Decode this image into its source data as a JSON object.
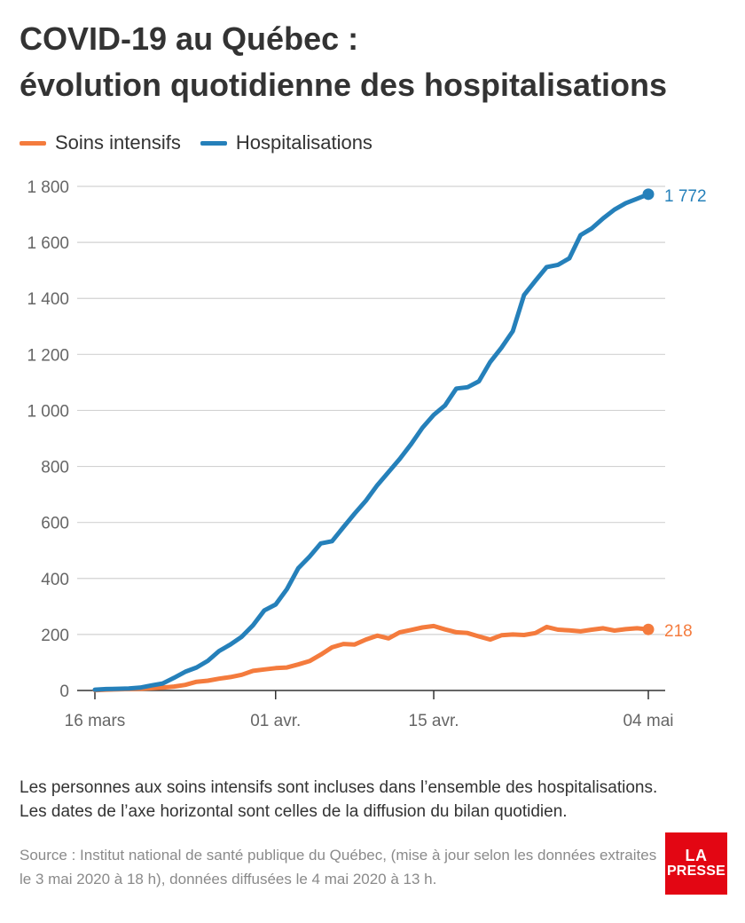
{
  "title_line1": "COVID-19 au Québec :",
  "title_line2": "évolution quotidienne des hospitalisations",
  "note_line1": "Les personnes aux soins intensifs sont incluses dans l’ensemble des hospitalisations.",
  "note_line2": "Les dates de l’axe horizontal sont celles de la diffusion du bilan quotidien.",
  "source": "Source : Institut national de santé publique du Québec, (mise à jour selon les données extraites le 3 mai 2020 à 18 h), données diffusées le 4 mai 2020 à 13 h.",
  "logo_line1": "LA",
  "logo_line2": "PRESSE",
  "chart_data": {
    "type": "line",
    "title": "COVID-19 au Québec : évolution quotidienne des hospitalisations",
    "x_start": "2020-03-16",
    "x_end": "2020-05-04",
    "xticks": [
      {
        "date": "2020-03-16",
        "label": "16 mars"
      },
      {
        "date": "2020-04-01",
        "label": "01 avr."
      },
      {
        "date": "2020-04-15",
        "label": "15 avr."
      },
      {
        "date": "2020-05-04",
        "label": "04 mai"
      }
    ],
    "ylim": [
      0,
      1800
    ],
    "yticks": [
      {
        "value": 0,
        "label": "0"
      },
      {
        "value": 200,
        "label": "200"
      },
      {
        "value": 400,
        "label": "400"
      },
      {
        "value": 600,
        "label": "600"
      },
      {
        "value": 800,
        "label": "800"
      },
      {
        "value": 1000,
        "label": "1 000"
      },
      {
        "value": 1200,
        "label": "1 200"
      },
      {
        "value": 1400,
        "label": "1 400"
      },
      {
        "value": 1600,
        "label": "1 600"
      },
      {
        "value": 1800,
        "label": "1 800"
      }
    ],
    "grid": true,
    "legend_position": "top-left",
    "series": [
      {
        "name": "Soins intensifs",
        "color": "#f47b3d",
        "end_label": "218",
        "points": [
          [
            "2020-03-16",
            1
          ],
          [
            "2020-03-17",
            3
          ],
          [
            "2020-03-18",
            4
          ],
          [
            "2020-03-19",
            5
          ],
          [
            "2020-03-20",
            6
          ],
          [
            "2020-03-21",
            8
          ],
          [
            "2020-03-22",
            10
          ],
          [
            "2020-03-23",
            14
          ],
          [
            "2020-03-24",
            20
          ],
          [
            "2020-03-25",
            31
          ],
          [
            "2020-03-26",
            35
          ],
          [
            "2020-03-27",
            42
          ],
          [
            "2020-03-28",
            48
          ],
          [
            "2020-03-29",
            56
          ],
          [
            "2020-03-30",
            70
          ],
          [
            "2020-03-31",
            75
          ],
          [
            "2020-04-01",
            80
          ],
          [
            "2020-04-02",
            82
          ],
          [
            "2020-04-03",
            93
          ],
          [
            "2020-04-04",
            105
          ],
          [
            "2020-04-05",
            128
          ],
          [
            "2020-04-06",
            154
          ],
          [
            "2020-04-07",
            166
          ],
          [
            "2020-04-08",
            164
          ],
          [
            "2020-04-09",
            182
          ],
          [
            "2020-04-10",
            196
          ],
          [
            "2020-04-11",
            186
          ],
          [
            "2020-04-12",
            208
          ],
          [
            "2020-04-13",
            216
          ],
          [
            "2020-04-14",
            225
          ],
          [
            "2020-04-15",
            230
          ],
          [
            "2020-04-16",
            218
          ],
          [
            "2020-04-17",
            208
          ],
          [
            "2020-04-18",
            205
          ],
          [
            "2020-04-19",
            193
          ],
          [
            "2020-04-20",
            182
          ],
          [
            "2020-04-21",
            197
          ],
          [
            "2020-04-22",
            200
          ],
          [
            "2020-04-23",
            198
          ],
          [
            "2020-04-24",
            205
          ],
          [
            "2020-04-25",
            227
          ],
          [
            "2020-04-26",
            217
          ],
          [
            "2020-04-27",
            215
          ],
          [
            "2020-04-28",
            211
          ],
          [
            "2020-04-29",
            217
          ],
          [
            "2020-04-30",
            222
          ],
          [
            "2020-05-01",
            214
          ],
          [
            "2020-05-02",
            219
          ],
          [
            "2020-05-03",
            222
          ],
          [
            "2020-05-04",
            218
          ]
        ]
      },
      {
        "name": "Hospitalisations",
        "color": "#2580ba",
        "end_label": "1 772",
        "points": [
          [
            "2020-03-16",
            3
          ],
          [
            "2020-03-17",
            5
          ],
          [
            "2020-03-18",
            6
          ],
          [
            "2020-03-19",
            7
          ],
          [
            "2020-03-20",
            10
          ],
          [
            "2020-03-21",
            18
          ],
          [
            "2020-03-22",
            25
          ],
          [
            "2020-03-23",
            45
          ],
          [
            "2020-03-24",
            67
          ],
          [
            "2020-03-25",
            82
          ],
          [
            "2020-03-26",
            106
          ],
          [
            "2020-03-27",
            141
          ],
          [
            "2020-03-28",
            164
          ],
          [
            "2020-03-29",
            192
          ],
          [
            "2020-03-30",
            233
          ],
          [
            "2020-03-31",
            286
          ],
          [
            "2020-04-01",
            307
          ],
          [
            "2020-04-02",
            362
          ],
          [
            "2020-04-03",
            436
          ],
          [
            "2020-04-04",
            478
          ],
          [
            "2020-04-05",
            525
          ],
          [
            "2020-04-06",
            533
          ],
          [
            "2020-04-07",
            583
          ],
          [
            "2020-04-08",
            632
          ],
          [
            "2020-04-09",
            678
          ],
          [
            "2020-04-10",
            733
          ],
          [
            "2020-04-11",
            780
          ],
          [
            "2020-04-12",
            827
          ],
          [
            "2020-04-13",
            880
          ],
          [
            "2020-04-14",
            938
          ],
          [
            "2020-04-15",
            984
          ],
          [
            "2020-04-16",
            1018
          ],
          [
            "2020-04-17",
            1078
          ],
          [
            "2020-04-18",
            1083
          ],
          [
            "2020-04-19",
            1104
          ],
          [
            "2020-04-20",
            1173
          ],
          [
            "2020-04-21",
            1224
          ],
          [
            "2020-04-22",
            1283
          ],
          [
            "2020-04-23",
            1412
          ],
          [
            "2020-04-24",
            1463
          ],
          [
            "2020-04-25",
            1512
          ],
          [
            "2020-04-26",
            1520
          ],
          [
            "2020-04-27",
            1543
          ],
          [
            "2020-04-28",
            1626
          ],
          [
            "2020-04-29",
            1650
          ],
          [
            "2020-04-30",
            1686
          ],
          [
            "2020-05-01",
            1717
          ],
          [
            "2020-05-02",
            1740
          ],
          [
            "2020-05-03",
            1756
          ],
          [
            "2020-05-04",
            1772
          ]
        ]
      }
    ]
  }
}
